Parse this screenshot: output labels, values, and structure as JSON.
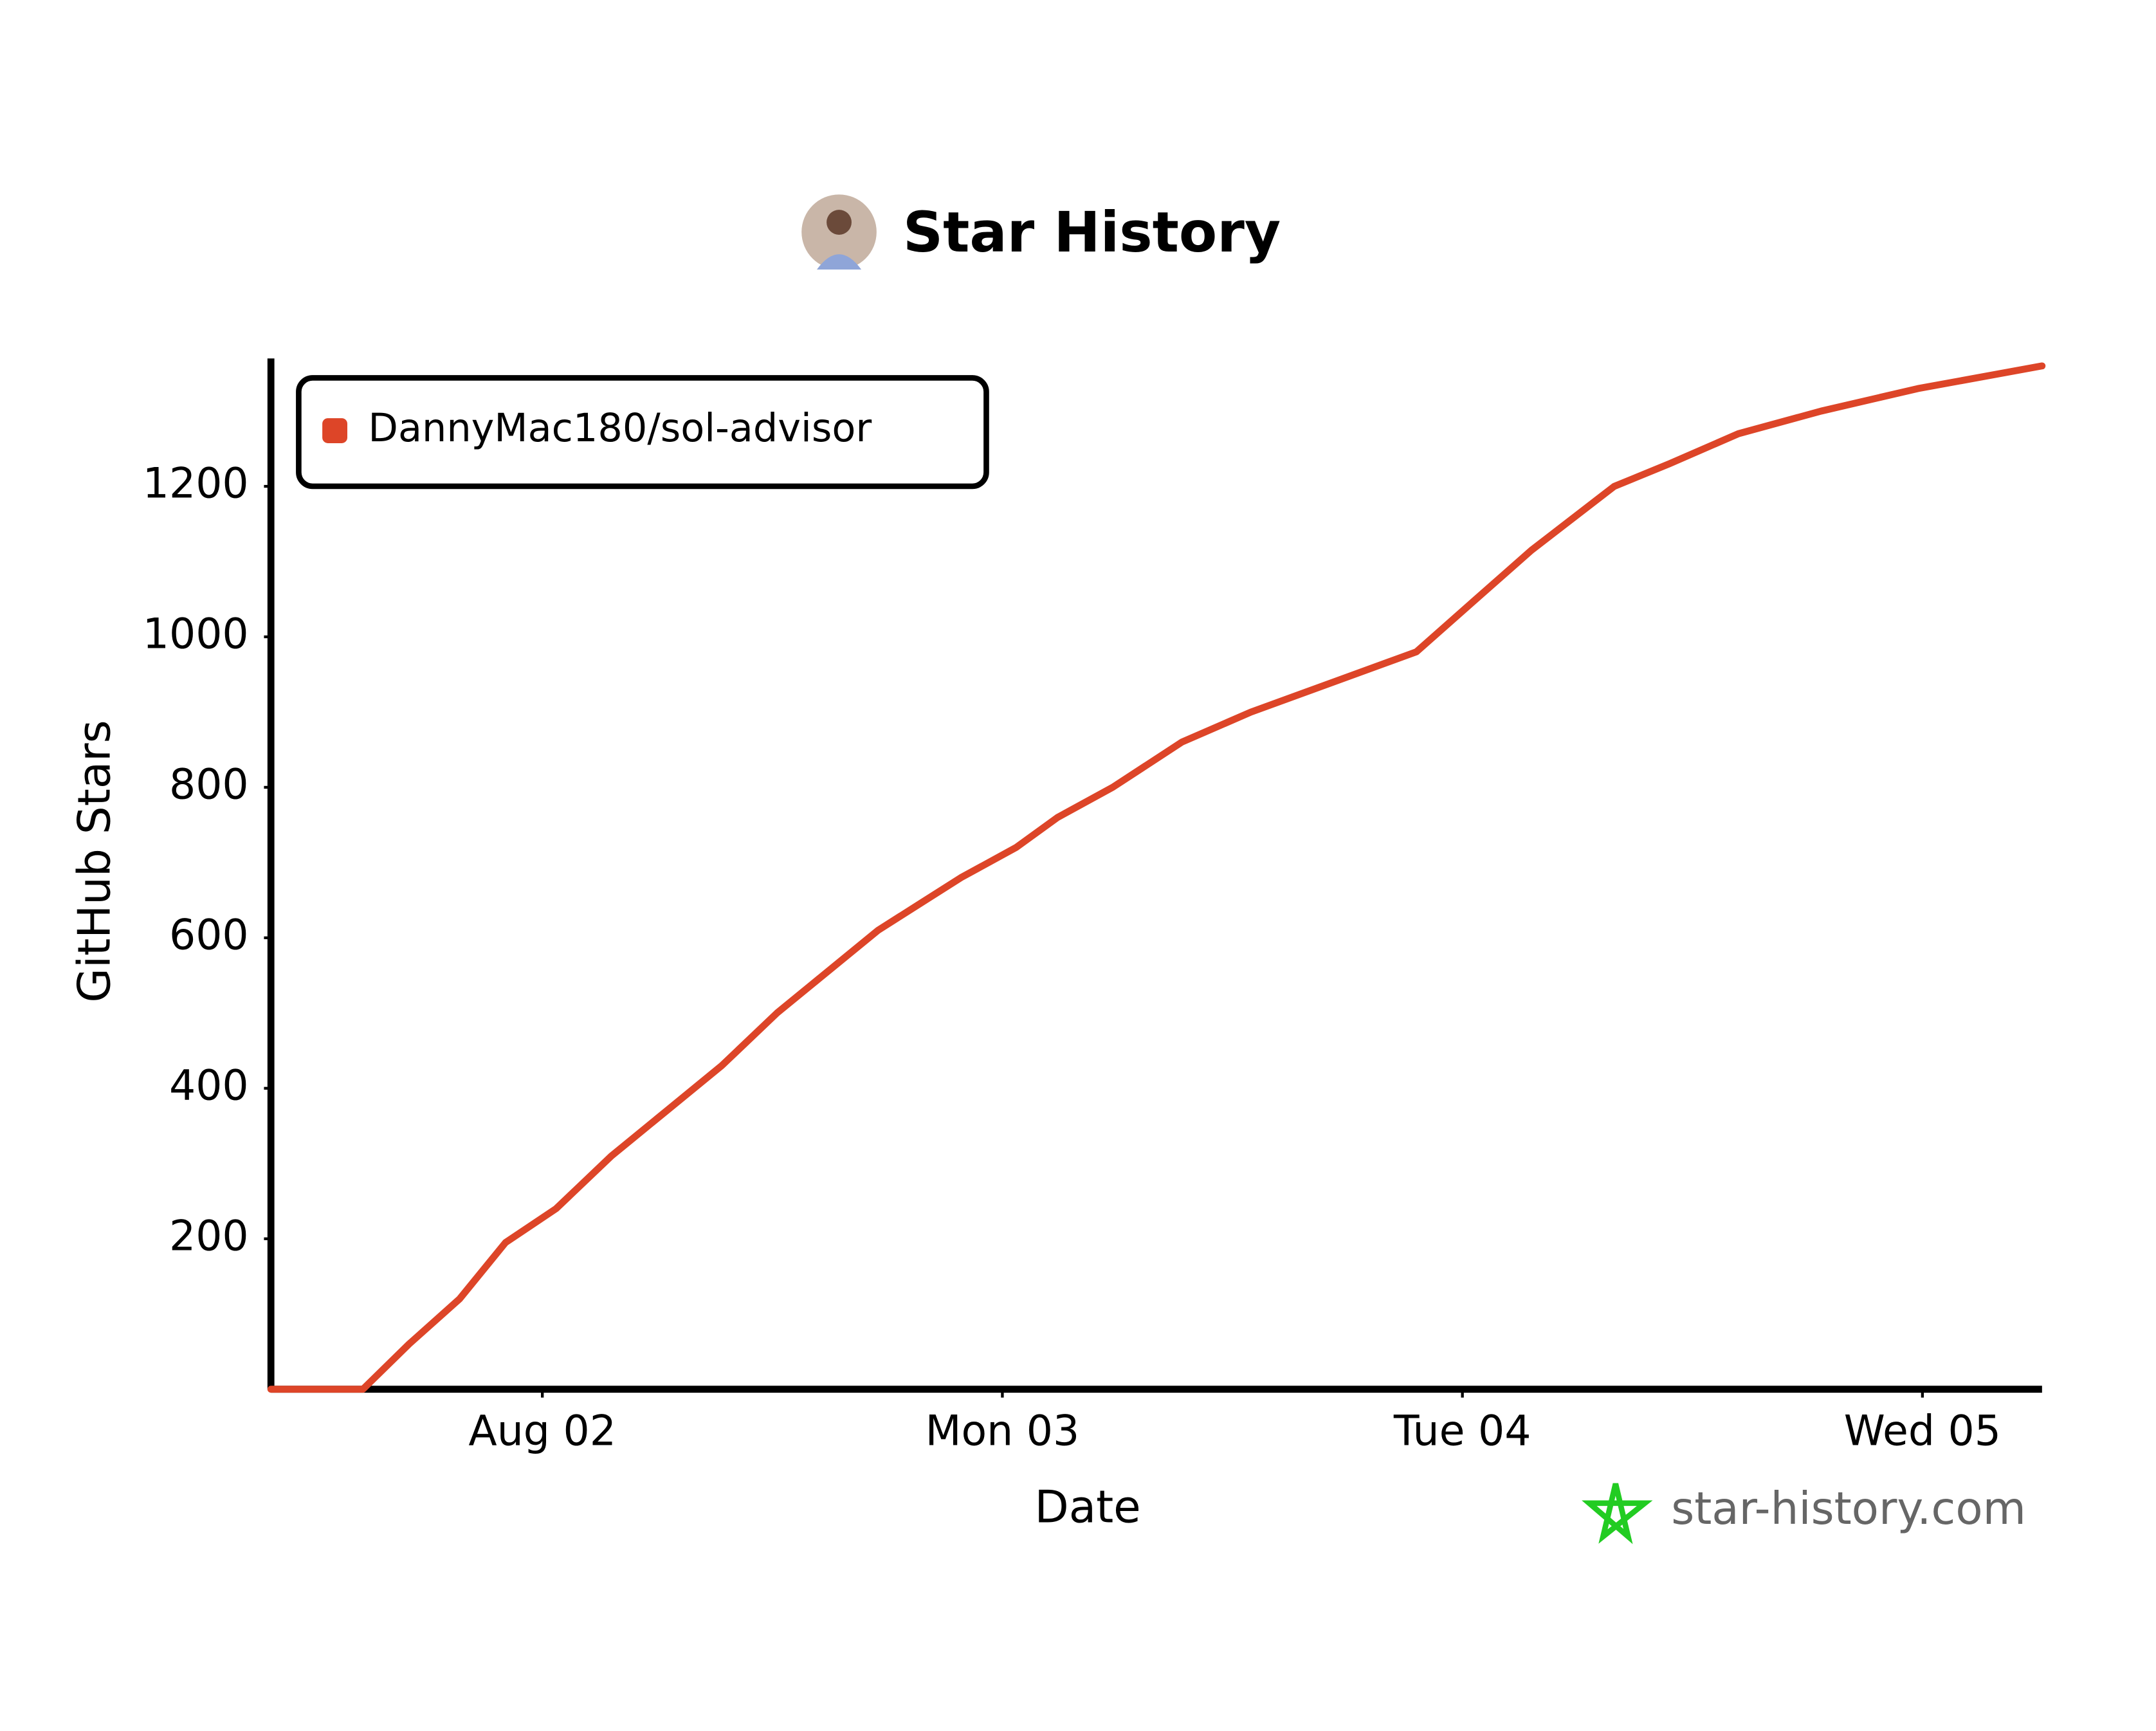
{
  "chart_data": {
    "type": "line",
    "title": "Star History",
    "xlabel": "Date",
    "ylabel": "GitHub Stars",
    "x": [
      1.41,
      1.61,
      1.71,
      1.82,
      1.92,
      2.03,
      2.15,
      2.27,
      2.39,
      2.51,
      2.63,
      2.73,
      2.91,
      3.03,
      3.12,
      3.24,
      3.39,
      3.54,
      3.72,
      3.9,
      4.02,
      4.15,
      4.33,
      4.45,
      4.6,
      4.78,
      4.99,
      5.26
    ],
    "series": [
      {
        "name": "DannyMac180/sol-advisor",
        "color": "#dd4528",
        "values": [
          0,
          0,
          60,
          120,
          195,
          240,
          310,
          370,
          430,
          500,
          560,
          610,
          680,
          720,
          760,
          800,
          860,
          900,
          940,
          980,
          1045,
          1115,
          1200,
          1230,
          1270,
          1300,
          1330,
          1360
        ]
      }
    ],
    "xlim": [
      1.41,
      5.26
    ],
    "xticks": [
      {
        "value": 2,
        "label": "Aug 02"
      },
      {
        "value": 3,
        "label": "Mon 03"
      },
      {
        "value": 4,
        "label": "Tue 04"
      },
      {
        "value": 5,
        "label": "Wed 05"
      }
    ],
    "ylim": [
      0,
      1370
    ],
    "yticks": [
      200,
      400,
      600,
      800,
      1000,
      1200
    ],
    "legend": "top-left",
    "watermark": "star-history.com"
  }
}
